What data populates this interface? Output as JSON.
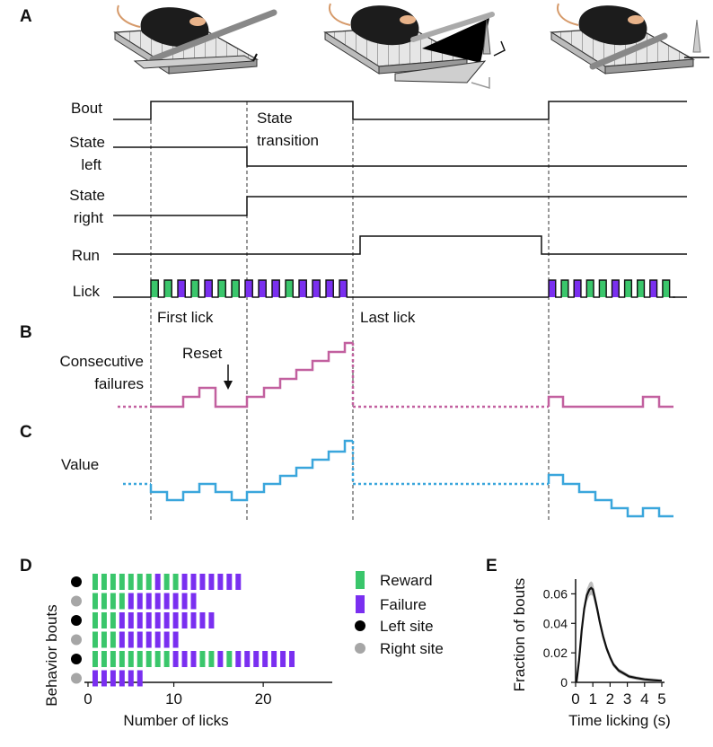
{
  "panels": {
    "a": "A",
    "b": "B",
    "c": "C",
    "d": "D",
    "e": "E"
  },
  "colors": {
    "reward": "#3ac66b",
    "failure": "#7a2ff0",
    "left_site": "#000000",
    "right_site": "#a6a6a6",
    "consecutive_failures": "#c2609f",
    "value": "#3aa6dc",
    "trace": "#111111"
  },
  "illustrations": [
    "mouse-on-treadmill-left-spout",
    "mouse-on-treadmill-spout-switching",
    "mouse-on-treadmill-right-spout"
  ],
  "traces": {
    "bout": "Bout",
    "state_left": [
      "State",
      "left"
    ],
    "state_right": [
      "State",
      "right"
    ],
    "run": "Run",
    "lick": "Lick"
  },
  "annotations": {
    "state_transition": [
      "State",
      "transition"
    ],
    "first_lick": "First lick",
    "last_lick": "Last lick",
    "reset": "Reset"
  },
  "lick_sequence_1": [
    "reward",
    "reward",
    "failure",
    "reward",
    "failure",
    "reward",
    "reward",
    "failure",
    "failure",
    "failure",
    "reward",
    "failure",
    "failure",
    "failure",
    "failure"
  ],
  "lick_sequence_2": [
    "failure",
    "reward",
    "failure",
    "reward",
    "reward",
    "failure",
    "reward",
    "reward",
    "failure",
    "reward"
  ],
  "b_label": [
    "Consecutive",
    "failures"
  ],
  "c_label": "Value",
  "d_legend": [
    {
      "label": "Reward",
      "kind": "reward"
    },
    {
      "label": "Failure",
      "kind": "failure"
    },
    {
      "label": "Left site",
      "kind": "left"
    },
    {
      "label": "Right site",
      "kind": "right"
    }
  ],
  "chart_data": [
    {
      "type": "bar",
      "panel": "D",
      "ylabel": "Behavior bouts",
      "xlabel": "Number of licks",
      "xticks": [
        0,
        10,
        20
      ],
      "xlim": [
        0,
        25
      ],
      "series": [
        {
          "site": "left",
          "licks": [
            "reward",
            "reward",
            "reward",
            "reward",
            "reward",
            "reward",
            "reward",
            "failure",
            "reward",
            "reward",
            "failure",
            "failure",
            "failure",
            "failure",
            "failure",
            "failure",
            "failure"
          ]
        },
        {
          "site": "right",
          "licks": [
            "reward",
            "reward",
            "reward",
            "reward",
            "failure",
            "failure",
            "failure",
            "failure",
            "failure",
            "failure",
            "failure",
            "failure"
          ]
        },
        {
          "site": "left",
          "licks": [
            "reward",
            "reward",
            "reward",
            "failure",
            "failure",
            "failure",
            "failure",
            "failure",
            "failure",
            "failure",
            "failure",
            "failure",
            "failure",
            "failure"
          ]
        },
        {
          "site": "right",
          "licks": [
            "reward",
            "reward",
            "reward",
            "failure",
            "failure",
            "failure",
            "failure",
            "failure",
            "failure",
            "failure"
          ]
        },
        {
          "site": "left",
          "licks": [
            "reward",
            "reward",
            "reward",
            "reward",
            "reward",
            "reward",
            "reward",
            "reward",
            "reward",
            "failure",
            "failure",
            "failure",
            "reward",
            "reward",
            "failure",
            "reward",
            "failure",
            "failure",
            "failure",
            "failure",
            "failure",
            "failure",
            "failure"
          ]
        },
        {
          "site": "right",
          "licks": [
            "failure",
            "failure",
            "failure",
            "failure",
            "failure",
            "failure"
          ]
        }
      ]
    },
    {
      "type": "line",
      "panel": "E",
      "ylabel": "Fraction of bouts",
      "xlabel": "Time licking (s)",
      "xticks": [
        0,
        1,
        2,
        3,
        4,
        5
      ],
      "yticks": [
        "0",
        "0.02",
        "0.04",
        "0.06"
      ],
      "xlim": [
        0,
        5
      ],
      "ylim": [
        0,
        0.07
      ],
      "x": [
        0.05,
        0.2,
        0.35,
        0.5,
        0.65,
        0.8,
        0.9,
        1.0,
        1.1,
        1.25,
        1.4,
        1.6,
        1.8,
        2.0,
        2.2,
        2.5,
        2.8,
        3.1,
        3.5,
        4.0,
        4.5,
        5.0
      ],
      "y": [
        0.0,
        0.015,
        0.035,
        0.05,
        0.059,
        0.063,
        0.064,
        0.063,
        0.058,
        0.05,
        0.041,
        0.031,
        0.023,
        0.017,
        0.012,
        0.008,
        0.006,
        0.004,
        0.003,
        0.002,
        0.0015,
        0.001
      ]
    }
  ]
}
